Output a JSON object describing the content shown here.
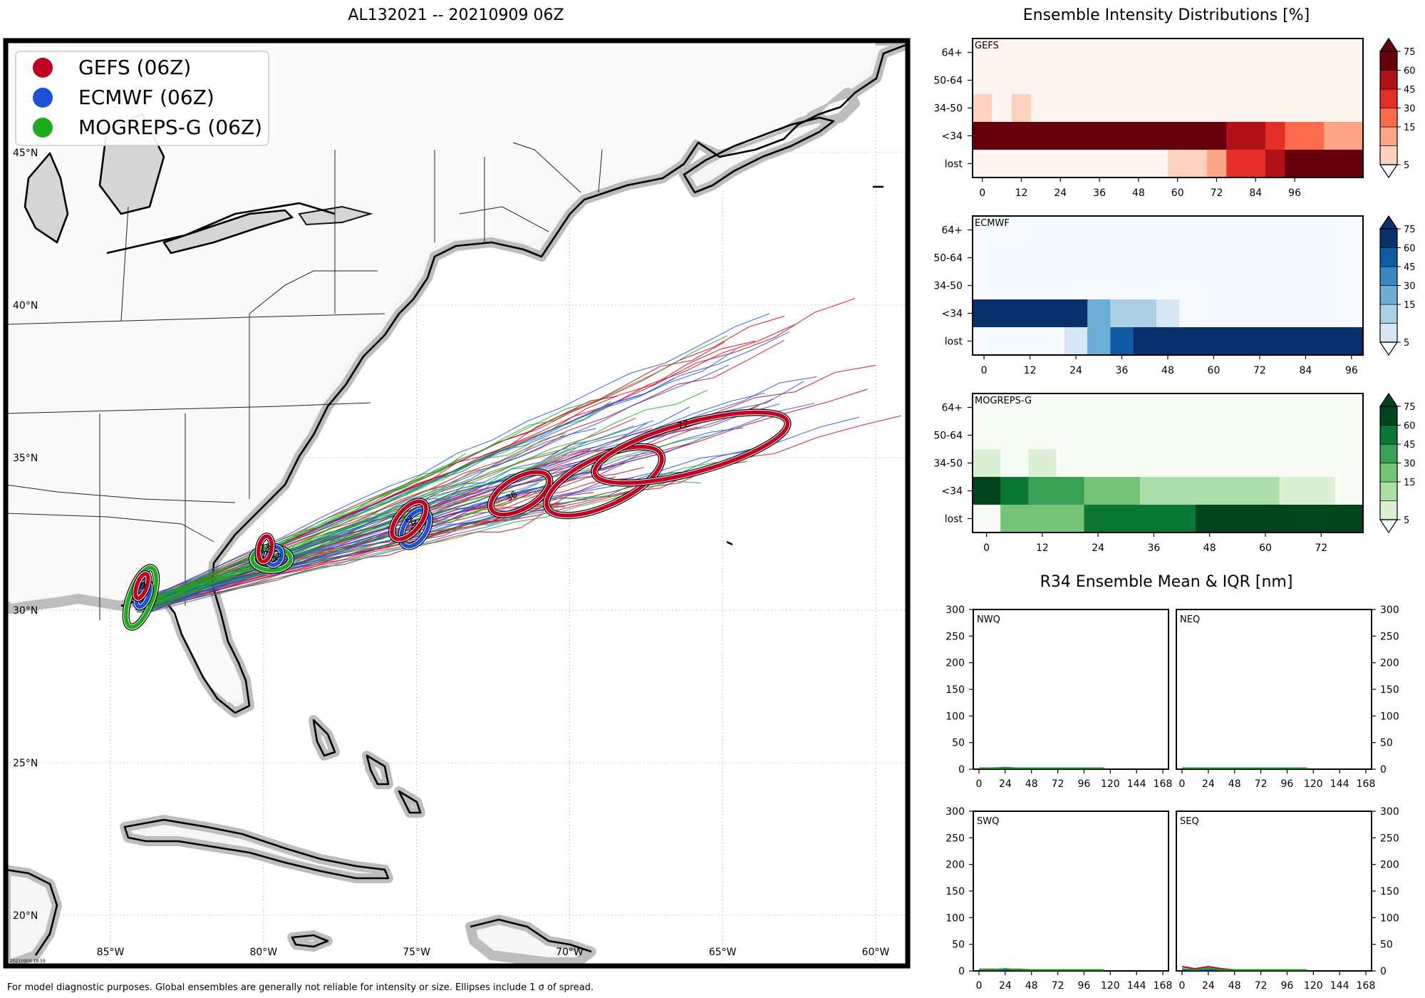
{
  "map": {
    "title": "AL132021 -- 20210909 06Z",
    "legend": [
      {
        "label": "GEFS (06Z)",
        "color": "#c0001e"
      },
      {
        "label": "ECMWF (06Z)",
        "color": "#1d4fd8"
      },
      {
        "label": "MOGREPS-G (06Z)",
        "color": "#1daa1d"
      }
    ],
    "lon_labels": [
      "85°W",
      "80°W",
      "75°W",
      "70°W",
      "65°W",
      "60°W"
    ],
    "lat_labels": [
      "45°N",
      "40°N",
      "35°N",
      "30°N",
      "25°N",
      "20°N"
    ],
    "stamp": "20210909 18:59",
    "footnote": "For model diagnostic purposes. Global ensembles are generally not reliable for intensity or size. Ellipses include 1 σ of spread.",
    "gefs_ellipse_labels": [
      "0",
      "12",
      "24",
      "36",
      "48",
      "72"
    ],
    "ecmwf_ellipse_labels": [
      "0",
      "12",
      "24"
    ],
    "mogreps_ellipse_labels": [
      "0",
      "12"
    ],
    "colors": {
      "gefs": "#c0001e",
      "ecmwf": "#1d4fd8",
      "mogreps": "#1daa1d",
      "land": "#f7f7f7",
      "coast_shade": "#cfcfcf"
    }
  },
  "intensity": {
    "title": "Ensemble Intensity Distributions [%]",
    "row_labels": [
      "64+",
      "50-64",
      "34-50",
      "<34",
      "lost"
    ],
    "colorbar_ticks": [
      "75",
      "60",
      "45",
      "30",
      "15",
      "5"
    ],
    "panels": [
      {
        "name": "GEFS",
        "x_ticks": [
          "0",
          "12",
          "24",
          "36",
          "48",
          "60",
          "72",
          "84",
          "96"
        ],
        "palette": "reds"
      },
      {
        "name": "ECMWF",
        "x_ticks": [
          "0",
          "12",
          "24",
          "36",
          "48",
          "60",
          "72",
          "84",
          "96"
        ],
        "palette": "blues"
      },
      {
        "name": "MOGREPS-G",
        "x_ticks": [
          "0",
          "12",
          "24",
          "36",
          "48",
          "60",
          "72"
        ],
        "palette": "greens"
      }
    ]
  },
  "r34": {
    "title": "R34 Ensemble Mean & IQR [nm]",
    "y_ticks": [
      "300",
      "250",
      "200",
      "150",
      "100",
      "50",
      "0"
    ],
    "x_ticks": [
      "0",
      "24",
      "48",
      "72",
      "96",
      "120",
      "144",
      "168"
    ],
    "quadrants": [
      "NWQ",
      "NEQ",
      "SWQ",
      "SEQ"
    ]
  },
  "chart_data": [
    {
      "type": "heatmap",
      "title": "GEFS",
      "x_label_hours": [
        0,
        12,
        24,
        36,
        48,
        60,
        72,
        84,
        96
      ],
      "rows": [
        "64+",
        "50-64",
        "34-50",
        "<34",
        "lost"
      ],
      "bins_hours": [
        0,
        6,
        12,
        18,
        24,
        30,
        36,
        42,
        48,
        54,
        60,
        66,
        72,
        78,
        84,
        90,
        96,
        102,
        108,
        114
      ],
      "values": [
        [
          0,
          0,
          0,
          0,
          0,
          0,
          0,
          0,
          0,
          0,
          0,
          0,
          0,
          0,
          0,
          0,
          0,
          0,
          0,
          0
        ],
        [
          0,
          0,
          0,
          0,
          0,
          0,
          0,
          0,
          0,
          0,
          0,
          0,
          0,
          0,
          0,
          0,
          0,
          0,
          0,
          0
        ],
        [
          12,
          0,
          12,
          0,
          0,
          0,
          0,
          0,
          0,
          0,
          0,
          0,
          0,
          0,
          0,
          0,
          0,
          0,
          0,
          0
        ],
        [
          88,
          88,
          88,
          88,
          88,
          88,
          88,
          88,
          88,
          88,
          88,
          88,
          88,
          65,
          65,
          50,
          40,
          40,
          18,
          18
        ],
        [
          0,
          0,
          0,
          0,
          0,
          0,
          0,
          0,
          0,
          0,
          12,
          12,
          25,
          45,
          45,
          65,
          88,
          88,
          88,
          88
        ]
      ],
      "colorbar": [
        5,
        15,
        30,
        45,
        60,
        75
      ]
    },
    {
      "type": "heatmap",
      "title": "ECMWF",
      "x_label_hours": [
        0,
        12,
        24,
        36,
        48,
        60,
        72,
        84,
        96
      ],
      "rows": [
        "64+",
        "50-64",
        "34-50",
        "<34",
        "lost"
      ],
      "bins_hours": [
        0,
        6,
        12,
        18,
        24,
        30,
        36,
        42,
        48,
        54,
        60,
        66,
        72,
        78,
        84,
        90,
        96
      ],
      "values": [
        [
          0,
          0,
          0,
          0,
          0,
          0,
          0,
          0,
          0,
          0,
          0,
          0,
          0,
          0,
          0,
          0,
          0
        ],
        [
          0,
          0,
          0,
          0,
          0,
          0,
          0,
          0,
          0,
          0,
          0,
          0,
          0,
          0,
          0,
          0,
          0
        ],
        [
          0,
          0,
          0,
          0,
          0,
          0,
          0,
          0,
          0,
          0,
          0,
          0,
          0,
          0,
          0,
          0,
          0
        ],
        [
          95,
          95,
          95,
          95,
          95,
          35,
          20,
          20,
          10,
          0,
          0,
          0,
          0,
          0,
          0,
          0,
          0
        ],
        [
          0,
          0,
          0,
          0,
          10,
          40,
          65,
          95,
          95,
          95,
          95,
          95,
          95,
          95,
          95,
          95,
          95
        ]
      ],
      "colorbar": [
        5,
        15,
        30,
        45,
        60,
        75
      ]
    },
    {
      "type": "heatmap",
      "title": "MOGREPS-G",
      "x_label_hours": [
        0,
        12,
        24,
        36,
        48,
        60,
        72
      ],
      "rows": [
        "64+",
        "50-64",
        "34-50",
        "<34",
        "lost"
      ],
      "bins_hours": [
        0,
        6,
        12,
        18,
        24,
        30,
        36,
        42,
        48,
        54,
        60,
        66,
        72,
        78
      ],
      "values": [
        [
          0,
          0,
          0,
          0,
          0,
          0,
          0,
          0,
          0,
          0,
          0,
          0,
          0,
          0
        ],
        [
          0,
          0,
          0,
          0,
          0,
          0,
          0,
          0,
          0,
          0,
          0,
          0,
          0,
          0
        ],
        [
          10,
          0,
          10,
          0,
          0,
          0,
          0,
          0,
          0,
          0,
          0,
          0,
          0,
          0
        ],
        [
          90,
          65,
          45,
          45,
          35,
          35,
          20,
          20,
          20,
          20,
          20,
          10,
          10,
          0
        ],
        [
          0,
          30,
          30,
          30,
          65,
          65,
          65,
          65,
          90,
          90,
          90,
          90,
          90,
          90
        ]
      ],
      "colorbar": [
        5,
        15,
        30,
        45,
        60,
        75
      ]
    },
    {
      "type": "line",
      "title": "R34 Ensemble Mean & IQR [nm]",
      "quadrants": [
        "NWQ",
        "NEQ",
        "SWQ",
        "SEQ"
      ],
      "xlim": [
        0,
        168
      ],
      "ylim": [
        0,
        300
      ],
      "x": [
        0,
        12,
        24,
        36,
        48,
        60,
        72,
        84,
        96,
        108,
        114
      ],
      "series": [
        {
          "name": "GEFS",
          "values": {
            "NWQ": [
              2,
              2,
              2,
              2,
              2,
              2,
              2,
              2,
              2,
              2,
              2
            ],
            "NEQ": [
              2,
              2,
              2,
              2,
              2,
              2,
              2,
              2,
              2,
              2,
              2
            ],
            "SWQ": [
              3,
              3,
              3,
              3,
              2,
              2,
              2,
              2,
              2,
              2,
              2
            ],
            "SEQ": [
              8,
              4,
              8,
              4,
              2,
              2,
              2,
              2,
              2,
              2,
              2
            ]
          }
        },
        {
          "name": "ECMWF",
          "values": {
            "NWQ": [
              2,
              2,
              3,
              2,
              2,
              2,
              2,
              2,
              2,
              2,
              2
            ],
            "NEQ": [
              2,
              2,
              2,
              2,
              2,
              2,
              2,
              2,
              2,
              2,
              2
            ],
            "SWQ": [
              2,
              2,
              2,
              2,
              2,
              2,
              2,
              2,
              2,
              2,
              2
            ],
            "SEQ": [
              2,
              2,
              2,
              2,
              2,
              2,
              2,
              2,
              2,
              2,
              2
            ]
          }
        },
        {
          "name": "MOGREPS-G",
          "values": {
            "NWQ": [
              2,
              2,
              2,
              2,
              2,
              2,
              2,
              2,
              2,
              2,
              2
            ],
            "NEQ": [
              2,
              2,
              2,
              2,
              2,
              2,
              2,
              2,
              2,
              2,
              2
            ],
            "SWQ": [
              3,
              2,
              4,
              2,
              2,
              2,
              2,
              2,
              2,
              2,
              2
            ],
            "SEQ": [
              4,
              2,
              5,
              2,
              2,
              2,
              2,
              2,
              2,
              2,
              2
            ]
          }
        }
      ]
    }
  ]
}
